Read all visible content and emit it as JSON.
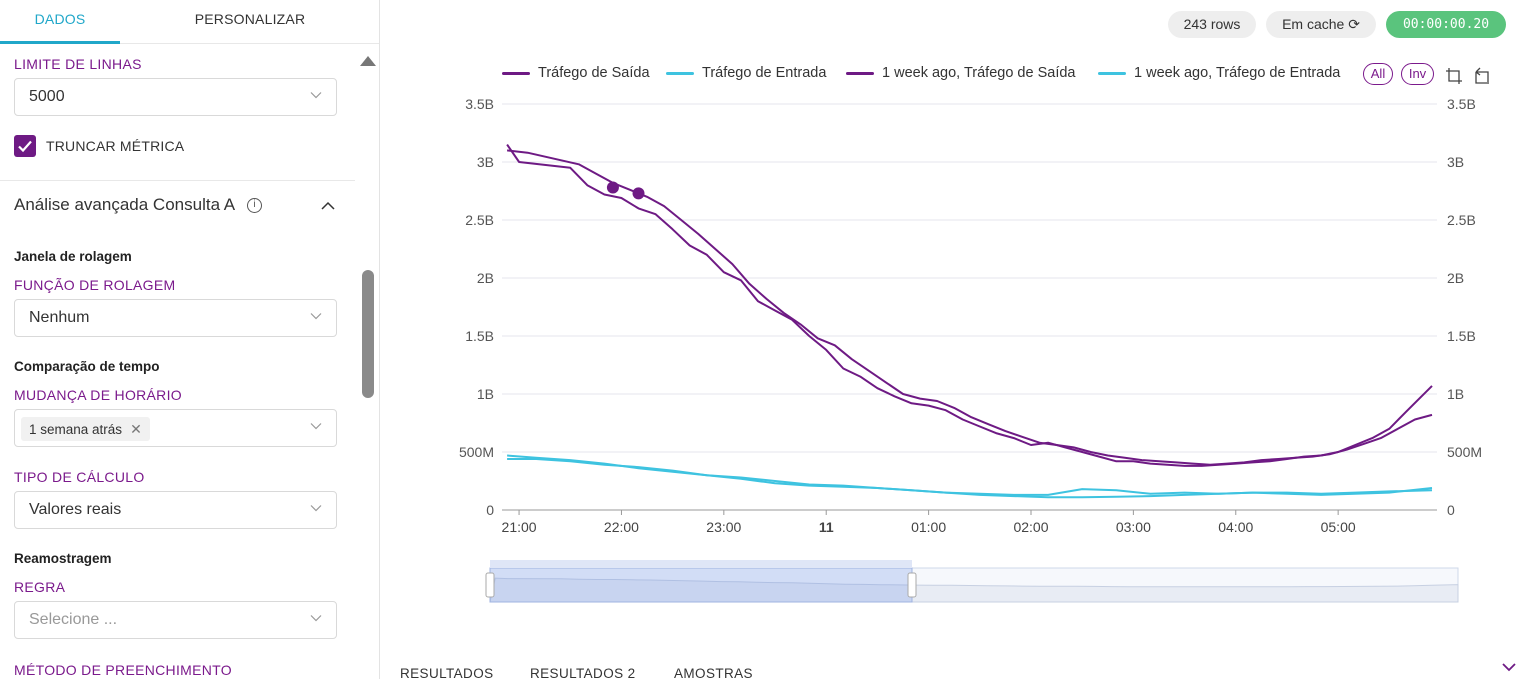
{
  "left": {
    "tabs": [
      "DADOS",
      "PERSONALIZAR"
    ],
    "row_limit": {
      "label": "LIMITE DE LINHAS",
      "value": "5000"
    },
    "truncate": {
      "label": "TRUNCAR MÉTRICA",
      "checked": true
    },
    "advanced_section": {
      "title": "Análise avançada Consulta A"
    },
    "rolling": {
      "heading": "Janela de rolagem",
      "label": "FUNÇÃO DE ROLAGEM",
      "value": "Nenhum"
    },
    "time_compare": {
      "heading": "Comparação de tempo",
      "label": "MUDANÇA DE HORÁRIO",
      "chip": "1 semana atrás"
    },
    "calc_type": {
      "label": "TIPO DE CÁLCULO",
      "value": "Valores reais"
    },
    "resample": {
      "heading": "Reamostragem",
      "label": "REGRA",
      "placeholder": "Selecione ..."
    },
    "fill_method": {
      "label": "MÉTODO DE PREENCHIMENTO"
    }
  },
  "header": {
    "rows": "243 rows",
    "cache": "Em cache",
    "timer": "00:00:00.20"
  },
  "legend": {
    "all_label": "All",
    "inv_label": "Inv"
  },
  "bottom_tabs": [
    "RESULTADOS",
    "RESULTADOS 2",
    "AMOSTRAS"
  ],
  "colors": {
    "accent": "#20a7c9",
    "purple": "#6e1a84",
    "cyan": "#3ec3e0",
    "timer_green": "#5ac47d"
  },
  "chart_data": {
    "type": "line",
    "x_tick_labels": [
      "21:00",
      "22:00",
      "23:00",
      "11",
      "01:00",
      "02:00",
      "03:00",
      "04:00",
      "05:00"
    ],
    "y_tick_labels": [
      "0",
      "500M",
      "1B",
      "1.5B",
      "2B",
      "2.5B",
      "3B",
      "3.5B"
    ],
    "ylim": [
      0,
      3500000000
    ],
    "x_range_hours": [
      "20:50",
      "05:55"
    ],
    "grid": true,
    "legend_position": "top",
    "series": [
      {
        "name": "Tráfego de Saída",
        "color": "#6e1a84",
        "x": [
          "20:53",
          "21:00",
          "21:30",
          "21:40",
          "21:50",
          "22:00",
          "22:10",
          "22:20",
          "22:30",
          "22:40",
          "22:50",
          "23:00",
          "23:10",
          "23:20",
          "23:30",
          "23:40",
          "23:50",
          "00:00",
          "00:10",
          "00:20",
          "00:30",
          "00:40",
          "00:50",
          "01:00",
          "01:10",
          "01:20",
          "01:30",
          "01:40",
          "01:50",
          "02:00",
          "02:10",
          "02:20",
          "02:30",
          "02:40",
          "02:50",
          "03:00",
          "03:10",
          "03:20",
          "03:30",
          "03:40",
          "03:50",
          "04:00",
          "04:10",
          "04:20",
          "04:30",
          "04:40",
          "04:50",
          "05:00",
          "05:10",
          "05:20",
          "05:30",
          "05:40",
          "05:55"
        ],
        "values": [
          3150000000,
          3000000000,
          2950000000,
          2800000000,
          2720000000,
          2690000000,
          2600000000,
          2550000000,
          2420000000,
          2280000000,
          2200000000,
          2050000000,
          1980000000,
          1800000000,
          1720000000,
          1640000000,
          1500000000,
          1380000000,
          1220000000,
          1150000000,
          1050000000,
          980000000,
          920000000,
          900000000,
          860000000,
          780000000,
          720000000,
          660000000,
          620000000,
          560000000,
          580000000,
          540000000,
          500000000,
          460000000,
          420000000,
          420000000,
          400000000,
          390000000,
          380000000,
          380000000,
          390000000,
          400000000,
          410000000,
          420000000,
          440000000,
          460000000,
          470000000,
          500000000,
          560000000,
          620000000,
          700000000,
          850000000,
          1070000000
        ]
      },
      {
        "name": "Tráfego de Entrada",
        "color": "#3ec3e0",
        "x": [
          "20:53",
          "21:10",
          "21:30",
          "21:50",
          "22:10",
          "22:30",
          "22:50",
          "23:10",
          "23:30",
          "23:50",
          "00:10",
          "00:30",
          "00:50",
          "01:10",
          "01:30",
          "01:50",
          "02:10",
          "02:30",
          "02:50",
          "03:10",
          "03:30",
          "03:50",
          "04:10",
          "04:30",
          "04:50",
          "05:10",
          "05:30",
          "05:55"
        ],
        "values": [
          470000000,
          450000000,
          430000000,
          400000000,
          360000000,
          330000000,
          300000000,
          270000000,
          230000000,
          210000000,
          200000000,
          190000000,
          170000000,
          150000000,
          130000000,
          120000000,
          110000000,
          110000000,
          115000000,
          120000000,
          130000000,
          140000000,
          150000000,
          150000000,
          140000000,
          150000000,
          160000000,
          170000000
        ]
      },
      {
        "name": "1 week ago, Tráfego de Saída",
        "color": "#6e1a84",
        "x": [
          "20:53",
          "21:05",
          "21:35",
          "21:45",
          "21:55",
          "22:05",
          "22:15",
          "22:25",
          "22:35",
          "22:45",
          "22:55",
          "23:05",
          "23:15",
          "23:25",
          "23:35",
          "23:45",
          "23:55",
          "00:05",
          "00:15",
          "00:25",
          "00:35",
          "00:45",
          "00:55",
          "01:05",
          "01:15",
          "01:25",
          "01:35",
          "01:45",
          "01:55",
          "02:05",
          "02:15",
          "02:25",
          "02:35",
          "02:45",
          "02:55",
          "03:05",
          "03:15",
          "03:25",
          "03:35",
          "03:45",
          "03:55",
          "04:05",
          "04:15",
          "04:25",
          "04:35",
          "04:45",
          "04:55",
          "05:05",
          "05:15",
          "05:25",
          "05:35",
          "05:45",
          "05:55"
        ],
        "values": [
          3100000000,
          3080000000,
          2980000000,
          2900000000,
          2820000000,
          2760000000,
          2700000000,
          2620000000,
          2500000000,
          2380000000,
          2250000000,
          2120000000,
          1950000000,
          1820000000,
          1700000000,
          1600000000,
          1480000000,
          1420000000,
          1300000000,
          1200000000,
          1100000000,
          1000000000,
          960000000,
          940000000,
          880000000,
          800000000,
          740000000,
          680000000,
          630000000,
          580000000,
          560000000,
          540000000,
          500000000,
          470000000,
          450000000,
          430000000,
          420000000,
          410000000,
          400000000,
          390000000,
          400000000,
          410000000,
          430000000,
          440000000,
          450000000,
          460000000,
          480000000,
          520000000,
          570000000,
          620000000,
          700000000,
          780000000,
          820000000
        ]
      },
      {
        "name": "1 week ago, Tráfego de Entrada",
        "color": "#3ec3e0",
        "x": [
          "20:53",
          "21:10",
          "21:30",
          "21:50",
          "22:10",
          "22:30",
          "22:50",
          "23:10",
          "23:30",
          "23:50",
          "00:10",
          "00:30",
          "00:50",
          "01:10",
          "01:30",
          "01:50",
          "02:10",
          "02:30",
          "02:50",
          "03:10",
          "03:30",
          "03:50",
          "04:10",
          "04:30",
          "04:50",
          "05:10",
          "05:30",
          "05:55"
        ],
        "values": [
          440000000,
          440000000,
          420000000,
          390000000,
          370000000,
          340000000,
          300000000,
          280000000,
          250000000,
          220000000,
          210000000,
          190000000,
          170000000,
          150000000,
          140000000,
          130000000,
          130000000,
          180000000,
          170000000,
          140000000,
          150000000,
          140000000,
          150000000,
          140000000,
          130000000,
          140000000,
          150000000,
          190000000
        ]
      }
    ]
  }
}
